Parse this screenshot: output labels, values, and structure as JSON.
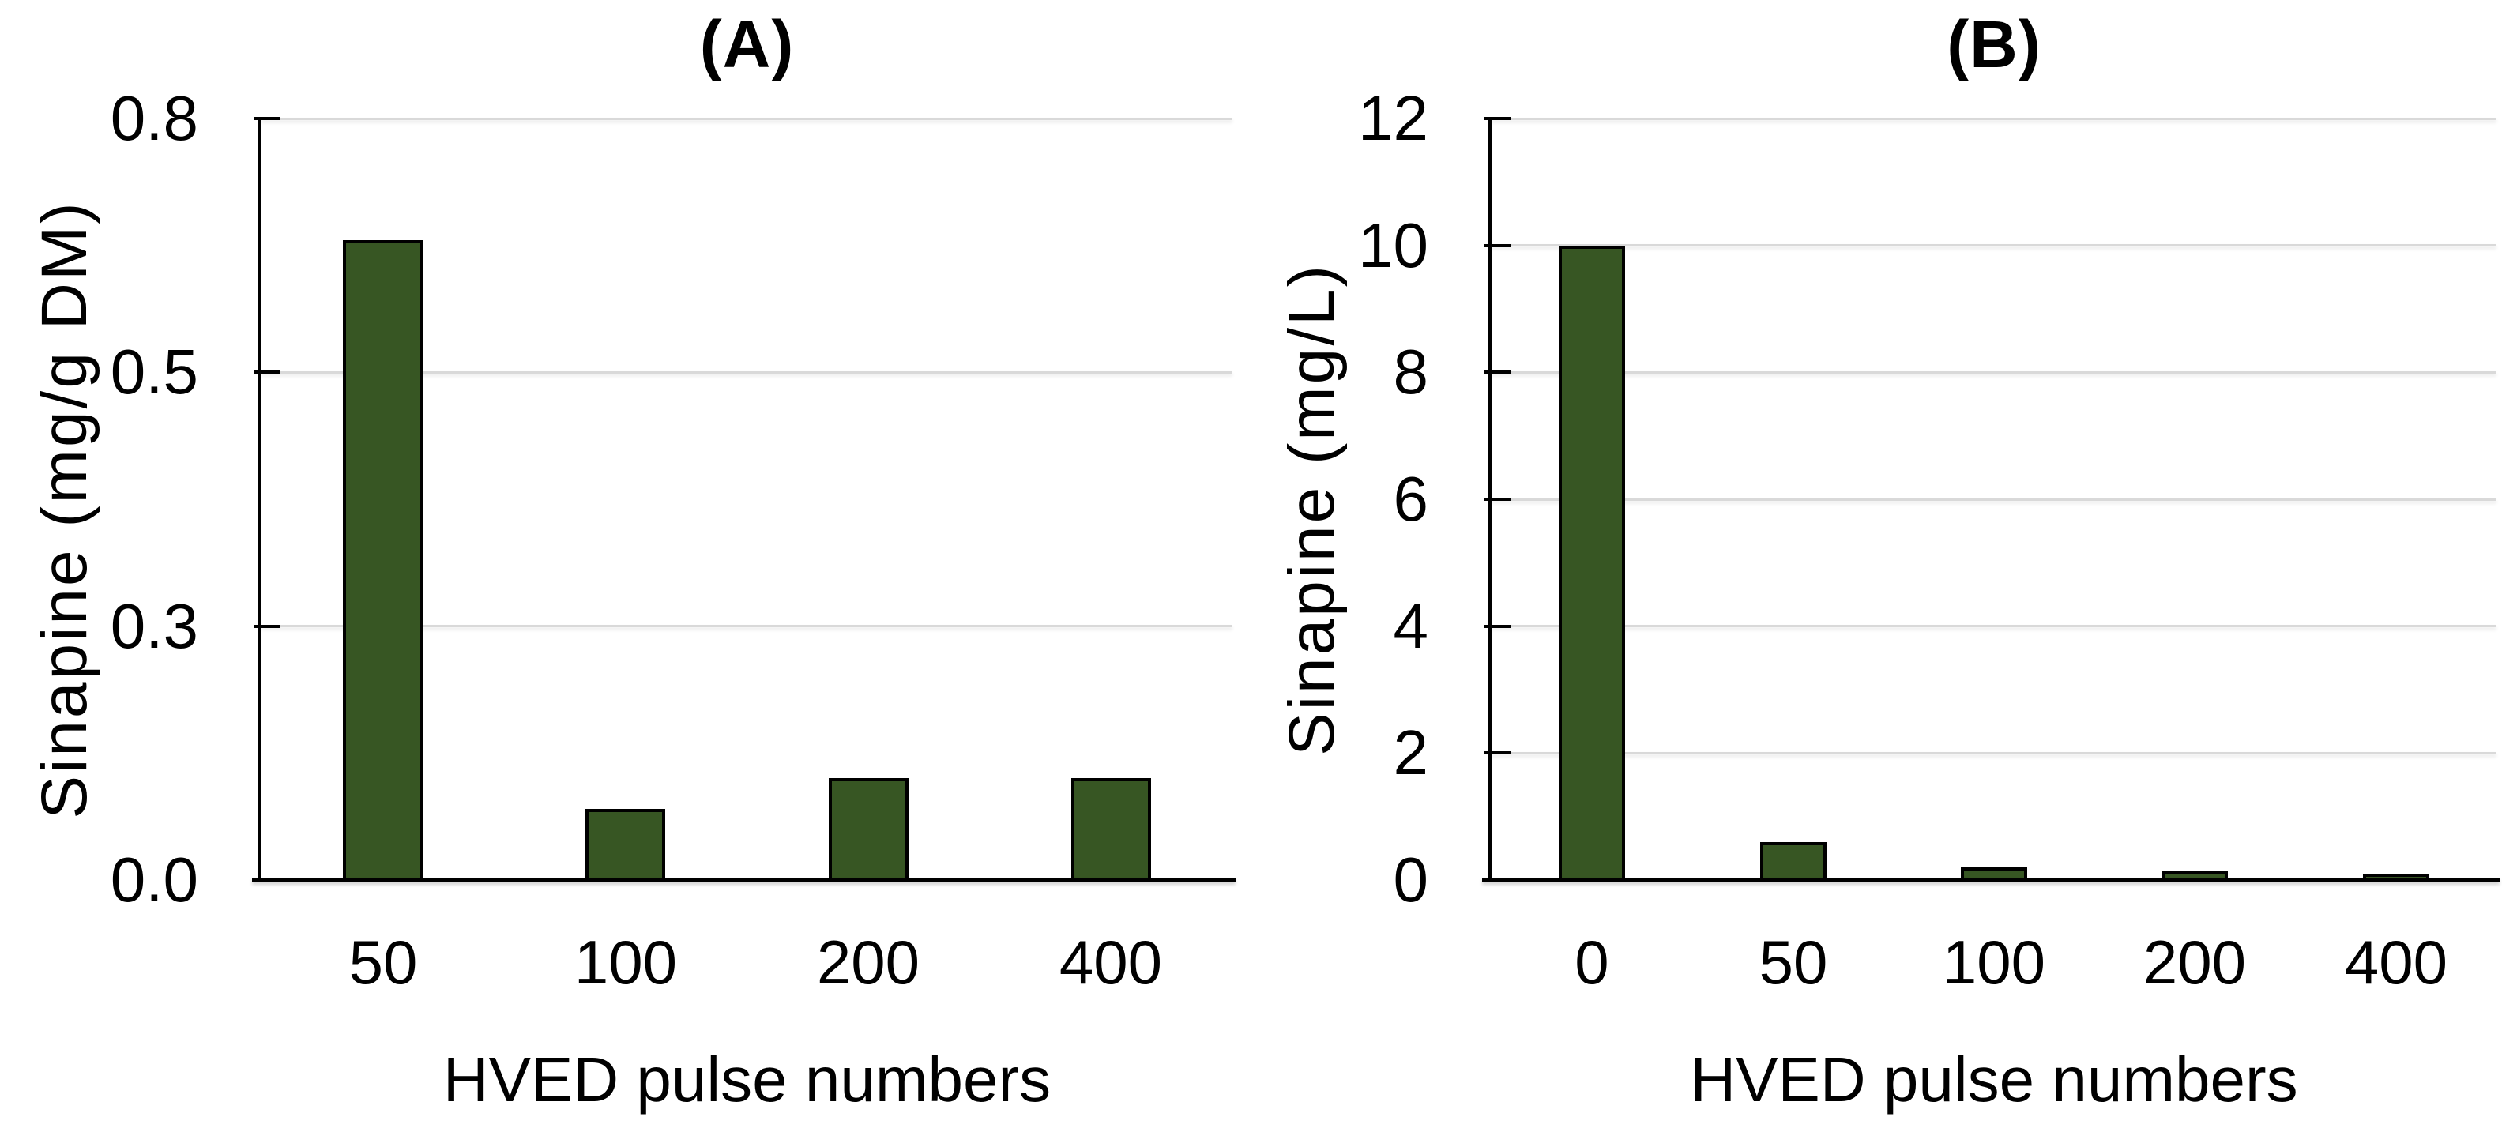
{
  "figure": {
    "background": "#ffffff",
    "text_color": "#000000"
  },
  "chart_data": [
    {
      "panel": "A",
      "type": "bar",
      "title": "(A)",
      "xlabel": "HVED pulse numbers",
      "ylabel": "Sinapine (mg/g DM)",
      "categories": [
        "50",
        "100",
        "200",
        "400"
      ],
      "values": [
        0.63,
        0.07,
        0.1,
        0.1
      ],
      "ylim": [
        0,
        0.75
      ],
      "ytick_values": [
        0,
        0.25,
        0.5,
        0.75
      ],
      "ytick_labels": [
        "0.0",
        "0.3",
        "0.5",
        "0.8"
      ],
      "grid": true,
      "legend": "none",
      "bar_color": "#375623",
      "bar_border_color": "#000000",
      "gridline_color": "#d9d9d9",
      "axis_color": "#000000"
    },
    {
      "panel": "B",
      "type": "bar",
      "title": "(B)",
      "xlabel": "HVED pulse numbers",
      "ylabel": "Sinapine (mg/L)",
      "categories": [
        "0",
        "50",
        "100",
        "200",
        "400"
      ],
      "values": [
        10.0,
        0.6,
        0.2,
        0.15,
        0.1
      ],
      "ylim": [
        0,
        12
      ],
      "ytick_values": [
        0,
        2,
        4,
        6,
        8,
        10,
        12
      ],
      "ytick_labels": [
        "0",
        "2",
        "4",
        "6",
        "8",
        "10",
        "12"
      ],
      "grid": true,
      "legend": "none",
      "bar_color": "#375623",
      "bar_border_color": "#000000",
      "gridline_color": "#d9d9d9",
      "axis_color": "#000000"
    }
  ]
}
